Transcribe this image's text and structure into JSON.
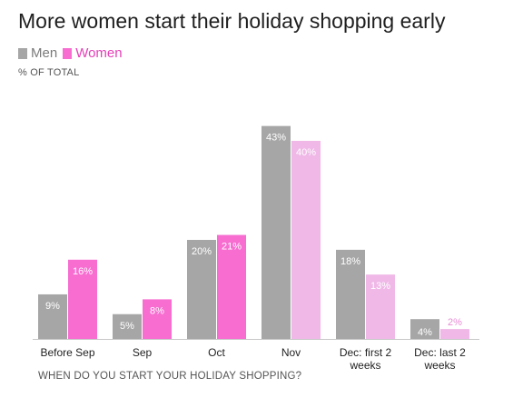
{
  "chart_data": {
    "type": "bar",
    "title": "More women start their holiday shopping early",
    "unit_label": "% OF TOTAL",
    "xlabel": "WHEN DO YOU START YOUR HOLIDAY SHOPPING?",
    "ylabel": "",
    "ylim": [
      0,
      47
    ],
    "grid": false,
    "legend_position": "top-left",
    "categories": [
      [
        "Before Sep"
      ],
      [
        "Sep"
      ],
      [
        "Oct"
      ],
      [
        "Nov"
      ],
      [
        "Dec: first 2",
        "weeks"
      ],
      [
        "Dec: last 2",
        "weeks"
      ]
    ],
    "series": [
      {
        "name": "Men",
        "values": [
          9,
          5,
          20,
          43,
          18,
          4
        ],
        "labels": [
          "9%",
          "5%",
          "20%",
          "43%",
          "18%",
          "4%"
        ],
        "color": "#a6a6a6"
      },
      {
        "name": "Women",
        "values": [
          16,
          8,
          21,
          40,
          13,
          2
        ],
        "labels": [
          "16%",
          "8%",
          "21%",
          "40%",
          "13%",
          "2%"
        ],
        "color": "#f76dd0"
      }
    ],
    "highlight": {
      "emphasized_category_count": 3,
      "muted_colors": {
        "Men": "#a6a6a6",
        "Women": "#efb8e7"
      },
      "muted_label_colors": {
        "Men": "#ffffff",
        "Women": "#ffffff",
        "Women_outside": "#e98bd6"
      }
    },
    "colors": {
      "men": "#a6a6a6",
      "women": "#f76dd0",
      "women_muted": "#efb8e7",
      "axis": "#c8c8c8",
      "text": "#1f1f1f"
    }
  }
}
